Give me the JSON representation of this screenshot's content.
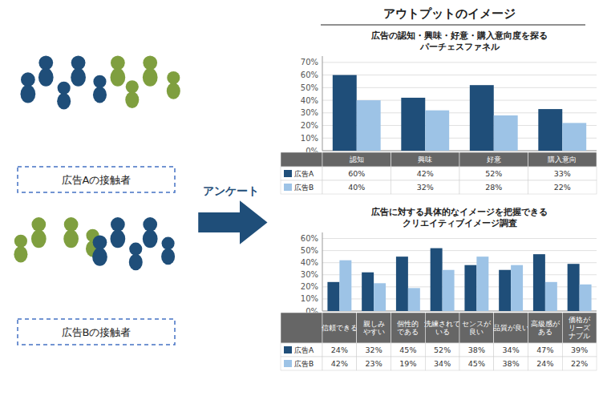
{
  "title": "アウトプットのイメージ",
  "annotations": [
    "広告Aの接触者",
    "広告Bの接触者",
    "アンケート"
  ],
  "chart_data": [
    {
      "type": "bar",
      "title": "広告の認知・興味・好意・購入意向度を探る",
      "subtitle": "パーチェスファネル",
      "categories": [
        "認知",
        "興味",
        "好意",
        "購入意向"
      ],
      "series": [
        {
          "name": "広告A",
          "color": "#1f4e79",
          "values": [
            60,
            42,
            52,
            33
          ],
          "value_labels": [
            "60%",
            "42%",
            "52%",
            "33%"
          ]
        },
        {
          "name": "広告B",
          "color": "#9dc3e6",
          "values": [
            40,
            32,
            28,
            22
          ],
          "value_labels": [
            "40%",
            "32%",
            "28%",
            "22%"
          ]
        }
      ],
      "ylim": [
        0,
        75
      ],
      "yticks": [
        {
          "value": 0,
          "label": "0%"
        },
        {
          "value": 10,
          "label": "10%"
        },
        {
          "value": 20,
          "label": "20%"
        },
        {
          "value": 30,
          "label": "30%"
        },
        {
          "value": 40,
          "label": "40%"
        },
        {
          "value": 50,
          "label": "50%"
        },
        {
          "value": 60,
          "label": "60%"
        },
        {
          "value": 70,
          "label": "70%"
        }
      ],
      "grid": true
    },
    {
      "type": "bar",
      "title": "広告に対する具体的なイメージを把握できる",
      "subtitle": "クリエイティブイメージ調査",
      "categories": [
        "信頼できる",
        "親しみ\nやすい",
        "個性的\nである",
        "洗練されて\nいる",
        "センスが\n良い",
        "品質が良い",
        "高級感が\nある",
        "価格が\nリーズ\nナブル"
      ],
      "series": [
        {
          "name": "広告A",
          "color": "#1f4e79",
          "values": [
            24,
            32,
            45,
            52,
            38,
            34,
            47,
            39
          ],
          "value_labels": [
            "24%",
            "32%",
            "45%",
            "52%",
            "38%",
            "34%",
            "47%",
            "39%"
          ]
        },
        {
          "name": "広告B",
          "color": "#9dc3e6",
          "values": [
            42,
            23,
            19,
            34,
            45,
            38,
            24,
            22
          ],
          "value_labels": [
            "42%",
            "23%",
            "19%",
            "34%",
            "45%",
            "38%",
            "24%",
            "22%"
          ]
        }
      ],
      "ylim": [
        0,
        65
      ],
      "yticks": [
        {
          "value": 0,
          "label": "0%"
        },
        {
          "value": 10,
          "label": "10%"
        },
        {
          "value": 20,
          "label": "20%"
        },
        {
          "value": 30,
          "label": "30%"
        },
        {
          "value": 40,
          "label": "40%"
        },
        {
          "value": 50,
          "label": "50%"
        },
        {
          "value": 60,
          "label": "60%"
        }
      ],
      "grid": true
    }
  ]
}
